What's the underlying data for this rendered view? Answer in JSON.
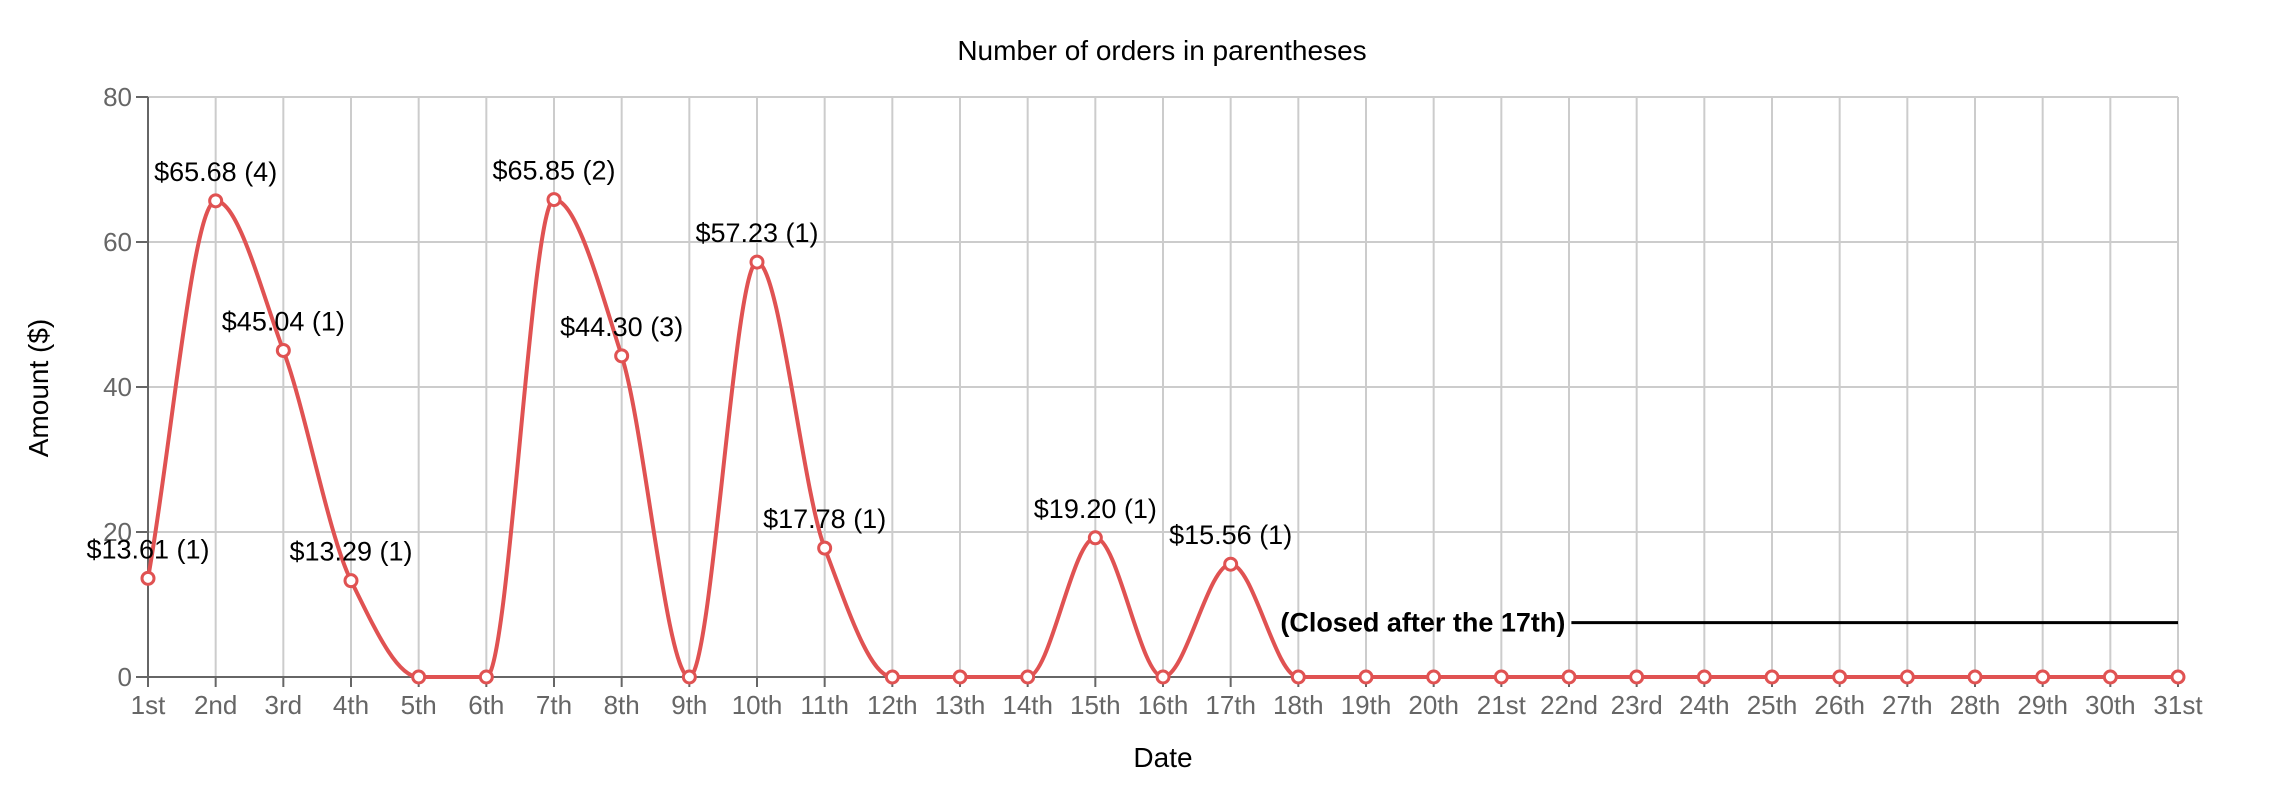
{
  "chart_data": {
    "type": "line",
    "title": "Number of orders in parentheses",
    "xlabel": "Date",
    "ylabel": "Amount ($)",
    "ylim": [
      0,
      80
    ],
    "yticks": [
      0,
      20,
      40,
      60,
      80
    ],
    "grid": true,
    "line_color": "#e05252",
    "categories": [
      "1st",
      "2nd",
      "3rd",
      "4th",
      "5th",
      "6th",
      "7th",
      "8th",
      "9th",
      "10th",
      "11th",
      "12th",
      "13th",
      "14th",
      "15th",
      "16th",
      "17th",
      "18th",
      "19th",
      "20th",
      "21st",
      "22nd",
      "23rd",
      "24th",
      "25th",
      "26th",
      "27th",
      "28th",
      "29th",
      "30th",
      "31st"
    ],
    "values": [
      13.61,
      65.68,
      45.04,
      13.29,
      0,
      0,
      65.85,
      44.3,
      0,
      57.23,
      17.78,
      0,
      0,
      0,
      19.2,
      0,
      15.56,
      0,
      0,
      0,
      0,
      0,
      0,
      0,
      0,
      0,
      0,
      0,
      0,
      0,
      0
    ],
    "point_labels": [
      {
        "index": 0,
        "text": "$13.61 (1)"
      },
      {
        "index": 1,
        "text": "$65.68 (4)"
      },
      {
        "index": 2,
        "text": "$45.04 (1)"
      },
      {
        "index": 3,
        "text": "$13.29 (1)"
      },
      {
        "index": 6,
        "text": "$65.85 (2)"
      },
      {
        "index": 7,
        "text": "$44.30 (3)"
      },
      {
        "index": 9,
        "text": "$57.23 (1)"
      },
      {
        "index": 10,
        "text": "$17.78 (1)"
      },
      {
        "index": 14,
        "text": "$19.20 (1)"
      },
      {
        "index": 16,
        "text": "$15.56 (1)"
      }
    ],
    "annotation": {
      "text": "(Closed after the 17th)",
      "from_index": 17,
      "to_index": 30,
      "y": 7.5,
      "color": "#000000"
    }
  }
}
